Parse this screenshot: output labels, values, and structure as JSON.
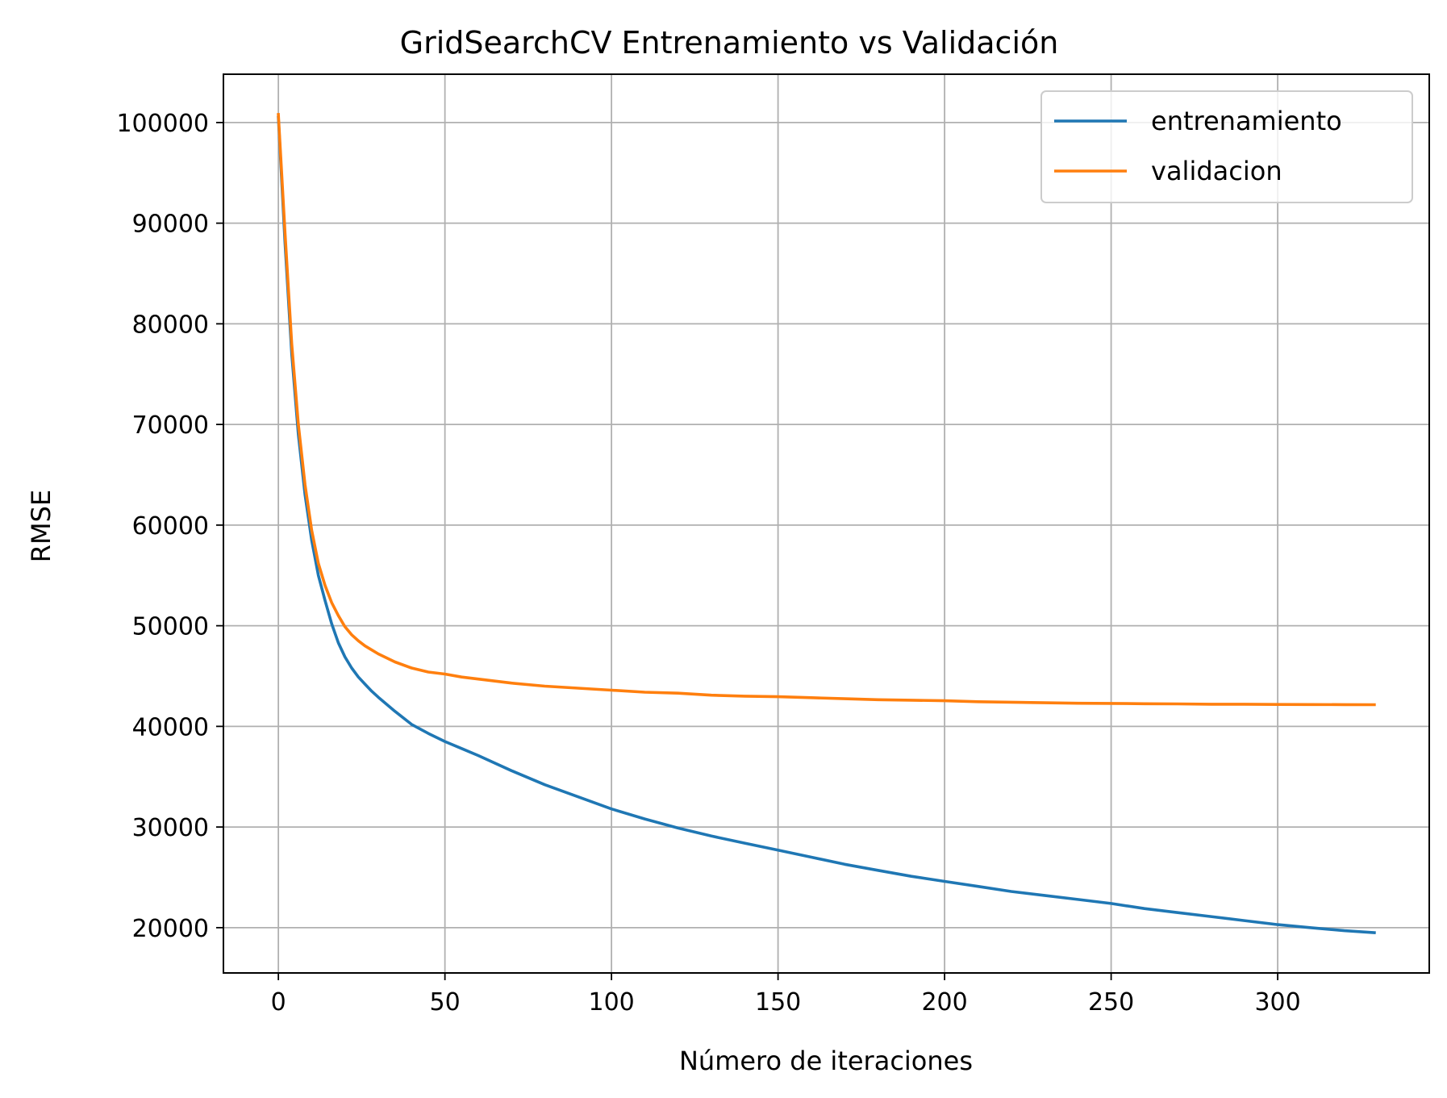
{
  "chart_data": {
    "type": "line",
    "title": "GridSearchCV Entrenamiento vs Validación",
    "xlabel": "Número de iteraciones",
    "ylabel": "RMSE",
    "xlim": [
      -16.5,
      345.5
    ],
    "ylim": [
      15500,
      104800
    ],
    "xticks": [
      0,
      50,
      100,
      150,
      200,
      250,
      300
    ],
    "yticks": [
      20000,
      30000,
      40000,
      50000,
      60000,
      70000,
      80000,
      90000,
      100000
    ],
    "grid": true,
    "legend_position": "top-right",
    "series": [
      {
        "name": "entrenamiento",
        "color": "#1f77b4",
        "x": [
          0,
          2,
          4,
          6,
          8,
          10,
          12,
          14,
          16,
          18,
          20,
          22,
          24,
          26,
          28,
          30,
          35,
          40,
          45,
          50,
          55,
          60,
          70,
          80,
          90,
          100,
          110,
          120,
          130,
          140,
          150,
          160,
          170,
          180,
          190,
          200,
          210,
          220,
          230,
          240,
          250,
          260,
          270,
          280,
          290,
          300,
          310,
          320,
          329
        ],
        "y": [
          100500,
          88000,
          77000,
          69000,
          63000,
          58500,
          55000,
          52500,
          50200,
          48300,
          46900,
          45800,
          44900,
          44200,
          43500,
          42900,
          41500,
          40200,
          39300,
          38500,
          37800,
          37100,
          35600,
          34200,
          33000,
          31800,
          30800,
          29900,
          29100,
          28400,
          27700,
          27000,
          26300,
          25700,
          25100,
          24600,
          24100,
          23600,
          23200,
          22800,
          22400,
          21900,
          21500,
          21100,
          20700,
          20300,
          20000,
          19700,
          19500
        ]
      },
      {
        "name": "validacion",
        "color": "#ff7f0e",
        "x": [
          0,
          2,
          4,
          6,
          8,
          10,
          12,
          14,
          16,
          18,
          20,
          22,
          24,
          26,
          28,
          30,
          35,
          40,
          45,
          50,
          55,
          60,
          70,
          80,
          90,
          100,
          110,
          120,
          130,
          140,
          150,
          160,
          170,
          180,
          190,
          200,
          210,
          220,
          230,
          240,
          250,
          260,
          270,
          280,
          290,
          300,
          310,
          320,
          329
        ],
        "y": [
          100800,
          89000,
          78000,
          70000,
          64000,
          59500,
          56200,
          54000,
          52300,
          51000,
          49900,
          49100,
          48500,
          48000,
          47600,
          47200,
          46400,
          45800,
          45400,
          45200,
          44900,
          44700,
          44300,
          44000,
          43800,
          43600,
          43400,
          43300,
          43100,
          43000,
          42950,
          42850,
          42750,
          42650,
          42600,
          42550,
          42450,
          42400,
          42350,
          42300,
          42280,
          42250,
          42230,
          42200,
          42200,
          42180,
          42170,
          42160,
          42150
        ]
      }
    ]
  }
}
